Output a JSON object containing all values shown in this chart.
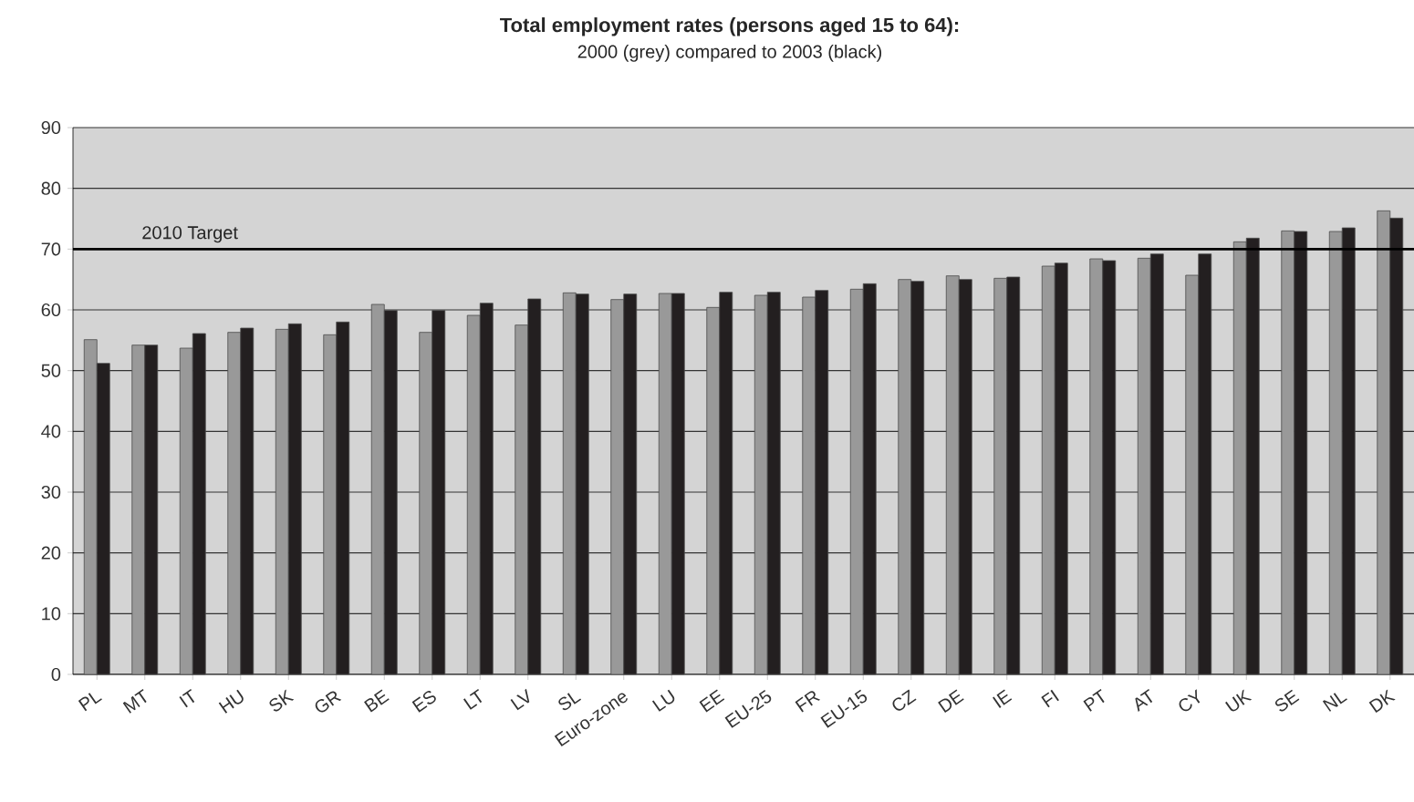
{
  "chart_data": {
    "type": "bar",
    "title": "Total employment rates (persons aged 15 to 64):",
    "subtitle": "2000 (grey) compared to 2003 (black)",
    "categories": [
      "PL",
      "MT",
      "IT",
      "HU",
      "SK",
      "GR",
      "BE",
      "ES",
      "LT",
      "LV",
      "SL",
      "Euro-zone",
      "LU",
      "EE",
      "EU-25",
      "FR",
      "EU-15",
      "CZ",
      "DE",
      "IE",
      "FI",
      "PT",
      "AT",
      "CY",
      "UK",
      "SE",
      "NL",
      "DK"
    ],
    "series": [
      {
        "color": "#999999",
        "values": [
          55.1,
          54.2,
          53.7,
          56.3,
          56.8,
          55.9,
          60.9,
          56.3,
          59.1,
          57.5,
          62.8,
          61.7,
          62.7,
          60.4,
          62.4,
          62.1,
          63.4,
          65.0,
          65.6,
          65.2,
          67.2,
          68.4,
          68.5,
          65.7,
          71.2,
          73.0,
          72.9,
          76.3
        ]
      },
      {
        "color": "#231f20",
        "values": [
          51.2,
          54.2,
          56.1,
          57.0,
          57.7,
          58.0,
          59.9,
          59.9,
          61.1,
          61.8,
          62.6,
          62.6,
          62.7,
          62.9,
          62.9,
          63.2,
          64.3,
          64.7,
          65.0,
          65.4,
          67.7,
          68.1,
          69.2,
          69.2,
          71.8,
          72.9,
          73.5,
          75.1
        ]
      }
    ],
    "ylim": [
      0,
      90
    ],
    "yticks": [
      0,
      10,
      20,
      30,
      40,
      50,
      60,
      70,
      80,
      90
    ],
    "grid": "y",
    "ref_lines": [
      {
        "axis": "y",
        "value": 70,
        "label": "2010 Target"
      }
    ]
  }
}
